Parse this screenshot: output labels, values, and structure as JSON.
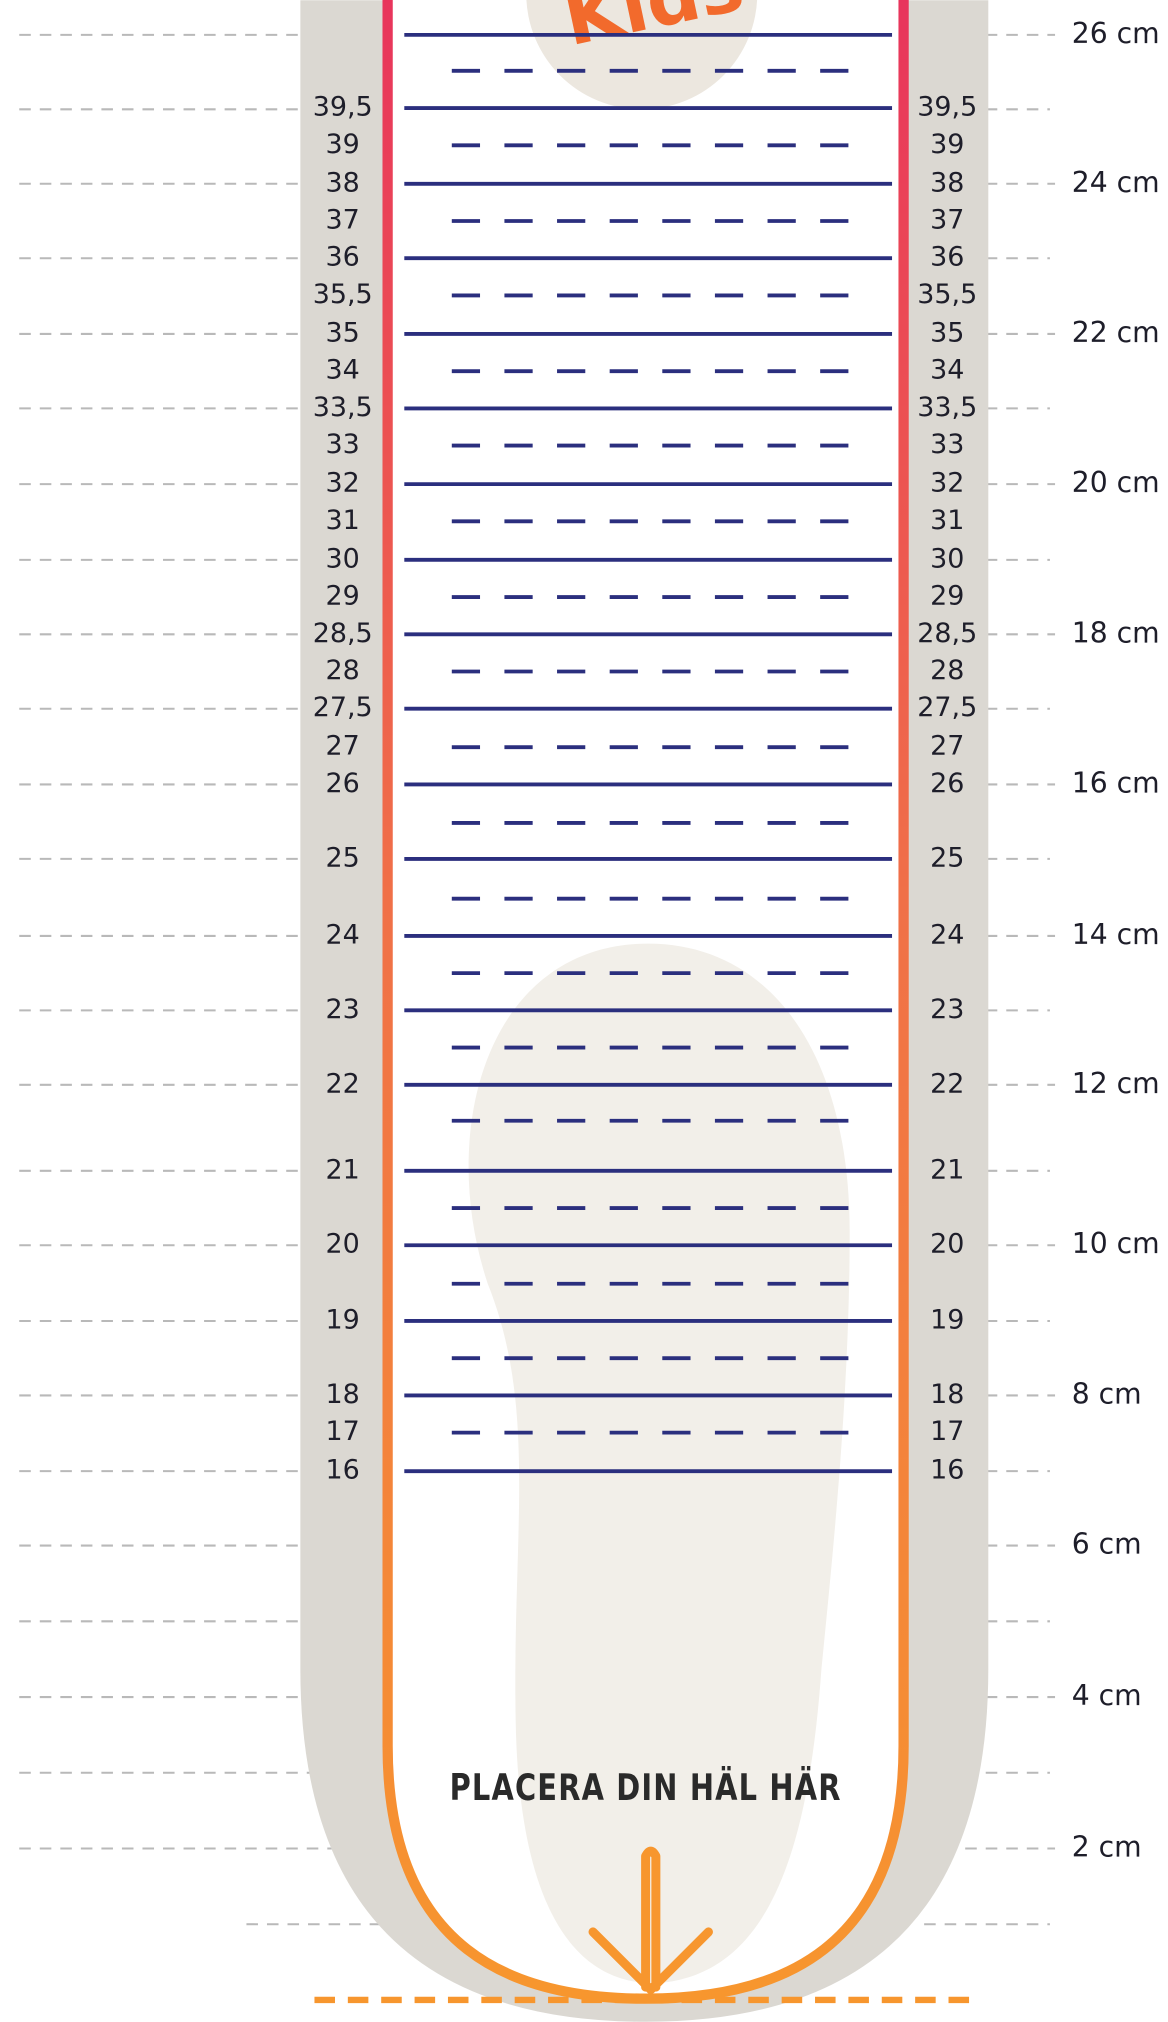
{
  "logo": "Kids",
  "heading": "PLACERA DIN HÄL HÄR",
  "rows": [
    {
      "style": "solid"
    },
    {
      "style": "dashed"
    },
    {
      "style": "solid",
      "label": "39,5"
    },
    {
      "style": "dashed",
      "label": "39"
    },
    {
      "style": "solid",
      "label": "38"
    },
    {
      "style": "dashed",
      "label": "37"
    },
    {
      "style": "solid",
      "label": "36"
    },
    {
      "style": "dashed",
      "label": "35,5"
    },
    {
      "style": "solid",
      "label": "35"
    },
    {
      "style": "dashed",
      "label": "34"
    },
    {
      "style": "solid",
      "label": "33,5"
    },
    {
      "style": "dashed",
      "label": "33"
    },
    {
      "style": "solid",
      "label": "32"
    },
    {
      "style": "dashed",
      "label": "31"
    },
    {
      "style": "solid",
      "label": "30"
    },
    {
      "style": "dashed",
      "label": "29"
    },
    {
      "style": "solid",
      "label": "28,5"
    },
    {
      "style": "dashed",
      "label": "28"
    },
    {
      "style": "solid",
      "label": "27,5"
    },
    {
      "style": "dashed",
      "label": "27"
    },
    {
      "style": "solid",
      "label": "26"
    },
    {
      "style": "dashed"
    },
    {
      "style": "solid",
      "label": "25"
    },
    {
      "style": "dashed"
    },
    {
      "style": "solid",
      "label": "24"
    },
    {
      "style": "dashed"
    },
    {
      "style": "solid",
      "label": "23"
    },
    {
      "style": "dashed"
    },
    {
      "style": "solid",
      "label": "22"
    },
    {
      "style": "dashed"
    },
    {
      "style": "solid",
      "label": "21"
    },
    {
      "style": "dashed"
    },
    {
      "style": "solid",
      "label": "20"
    },
    {
      "style": "dashed"
    },
    {
      "style": "solid",
      "label": "19"
    },
    {
      "style": "dashed"
    },
    {
      "style": "solid",
      "label": "18"
    },
    {
      "style": "dashed",
      "label": "17"
    },
    {
      "style": "solid",
      "label": "16"
    }
  ],
  "cm_labels": [
    "26 cm",
    "24 cm",
    "22 cm",
    "20 cm",
    "18 cm",
    "16 cm",
    "14 cm",
    "12 cm",
    "10 cm",
    "8 cm",
    "6 cm",
    "4 cm",
    "2 cm"
  ]
}
